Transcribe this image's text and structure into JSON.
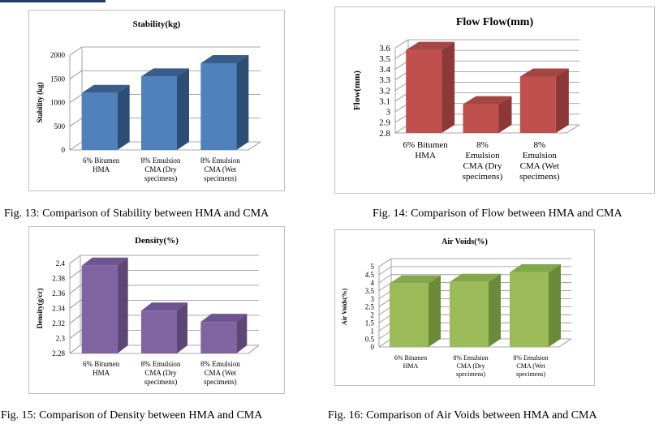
{
  "chart_data": [
    {
      "type": "bar",
      "title": "Stability(kg)",
      "ylabel": "Stability (kg)",
      "xlabel": "",
      "categories": [
        "6% Bitumen HMA",
        "8%  Emulsion CMA (Dry specimens)",
        "8%  Emulsion CMA (Wet specimens)"
      ],
      "category_lines": [
        [
          "6% Bitumen",
          "HMA"
        ],
        [
          "8%  Emulsion",
          "CMA (Dry",
          "specimens)"
        ],
        [
          "8%  Emulsion",
          "CMA (Wet",
          "specimens)"
        ]
      ],
      "values": [
        1200,
        1550,
        1830
      ],
      "ylim": [
        0,
        2000
      ],
      "ticks": [
        0,
        500,
        1000,
        1500,
        2000
      ],
      "grid": true,
      "colors": {
        "front": "#4f81bd",
        "side": "#2c4d75",
        "top": "#385d8a"
      }
    },
    {
      "type": "bar",
      "title": "Flow Flow(mm)",
      "ylabel": "Flow(mm)",
      "xlabel": "",
      "categories": [
        "6% Bitumen HMA",
        "8% Emulsion CMA (Dry specimens)",
        "8% Emulsion CMA (Wet specimens)"
      ],
      "category_lines": [
        [
          "6% Bitumen",
          "HMA"
        ],
        [
          "8%",
          "Emulsion",
          "CMA (Dry",
          "specimens)"
        ],
        [
          "8%",
          "Emulsion",
          "CMA (Wet",
          "specimens)"
        ]
      ],
      "values": [
        3.58,
        3.07,
        3.33
      ],
      "ylim": [
        2.8,
        3.6
      ],
      "ticks": [
        2.8,
        2.9,
        3,
        3.1,
        3.2,
        3.3,
        3.4,
        3.5,
        3.6
      ],
      "grid": true,
      "colors": {
        "front": "#c0504d",
        "side": "#8c3836",
        "top": "#a54643"
      }
    },
    {
      "type": "bar",
      "title": "Density(%)",
      "ylabel": "Density(g/cc)",
      "xlabel": "",
      "categories": [
        "6% Bitumen HMA",
        "8%  Emulsion CMA (Dry specimens)",
        "8%  Emulsion CMA (Wet specimens)"
      ],
      "category_lines": [
        [
          "6% Bitumen",
          "HMA"
        ],
        [
          "8%  Emulsion",
          "CMA (Dry",
          "specimens)"
        ],
        [
          "8%  Emulsion",
          "CMA (Wet",
          "specimens)"
        ]
      ],
      "values": [
        2.397,
        2.337,
        2.322
      ],
      "ylim": [
        2.28,
        2.4
      ],
      "ticks": [
        2.28,
        2.3,
        2.32,
        2.34,
        2.36,
        2.38,
        2.4
      ],
      "grid": true,
      "colors": {
        "front": "#8064a2",
        "side": "#5c4776",
        "top": "#6e5490"
      }
    },
    {
      "type": "bar",
      "title": "Air Voids(%)",
      "ylabel": "Air Voids(%)",
      "xlabel": "",
      "categories": [
        "6% Bitumen HMA",
        "8%  Emulsion CMA (Dry specimens)",
        "8%  Emulsion CMA (Wet specimens)"
      ],
      "category_lines": [
        [
          "6% Bitumen",
          "HMA"
        ],
        [
          "8%  Emulsion",
          "CMA (Dry",
          "specimens)"
        ],
        [
          "8%  Emulsion",
          "CMA (Wet",
          "specimens)"
        ]
      ],
      "values": [
        3.95,
        4.05,
        4.65
      ],
      "ylim": [
        0,
        5
      ],
      "ticks": [
        0,
        0.5,
        1,
        1.5,
        2,
        2.5,
        3,
        3.5,
        4,
        4.5,
        5
      ],
      "grid": true,
      "colors": {
        "front": "#9bbb59",
        "side": "#6b8a3a",
        "top": "#83a84a"
      }
    }
  ],
  "captions": {
    "fig13": "Fig. 13: Comparison of Stability between HMA and CMA",
    "fig14": "Fig. 14: Comparison of Flow between HMA and CMA",
    "fig15": "Fig. 15: Comparison of Density between HMA and CMA",
    "fig16": "Fig. 16: Comparison of Air Voids between HMA and CMA"
  }
}
